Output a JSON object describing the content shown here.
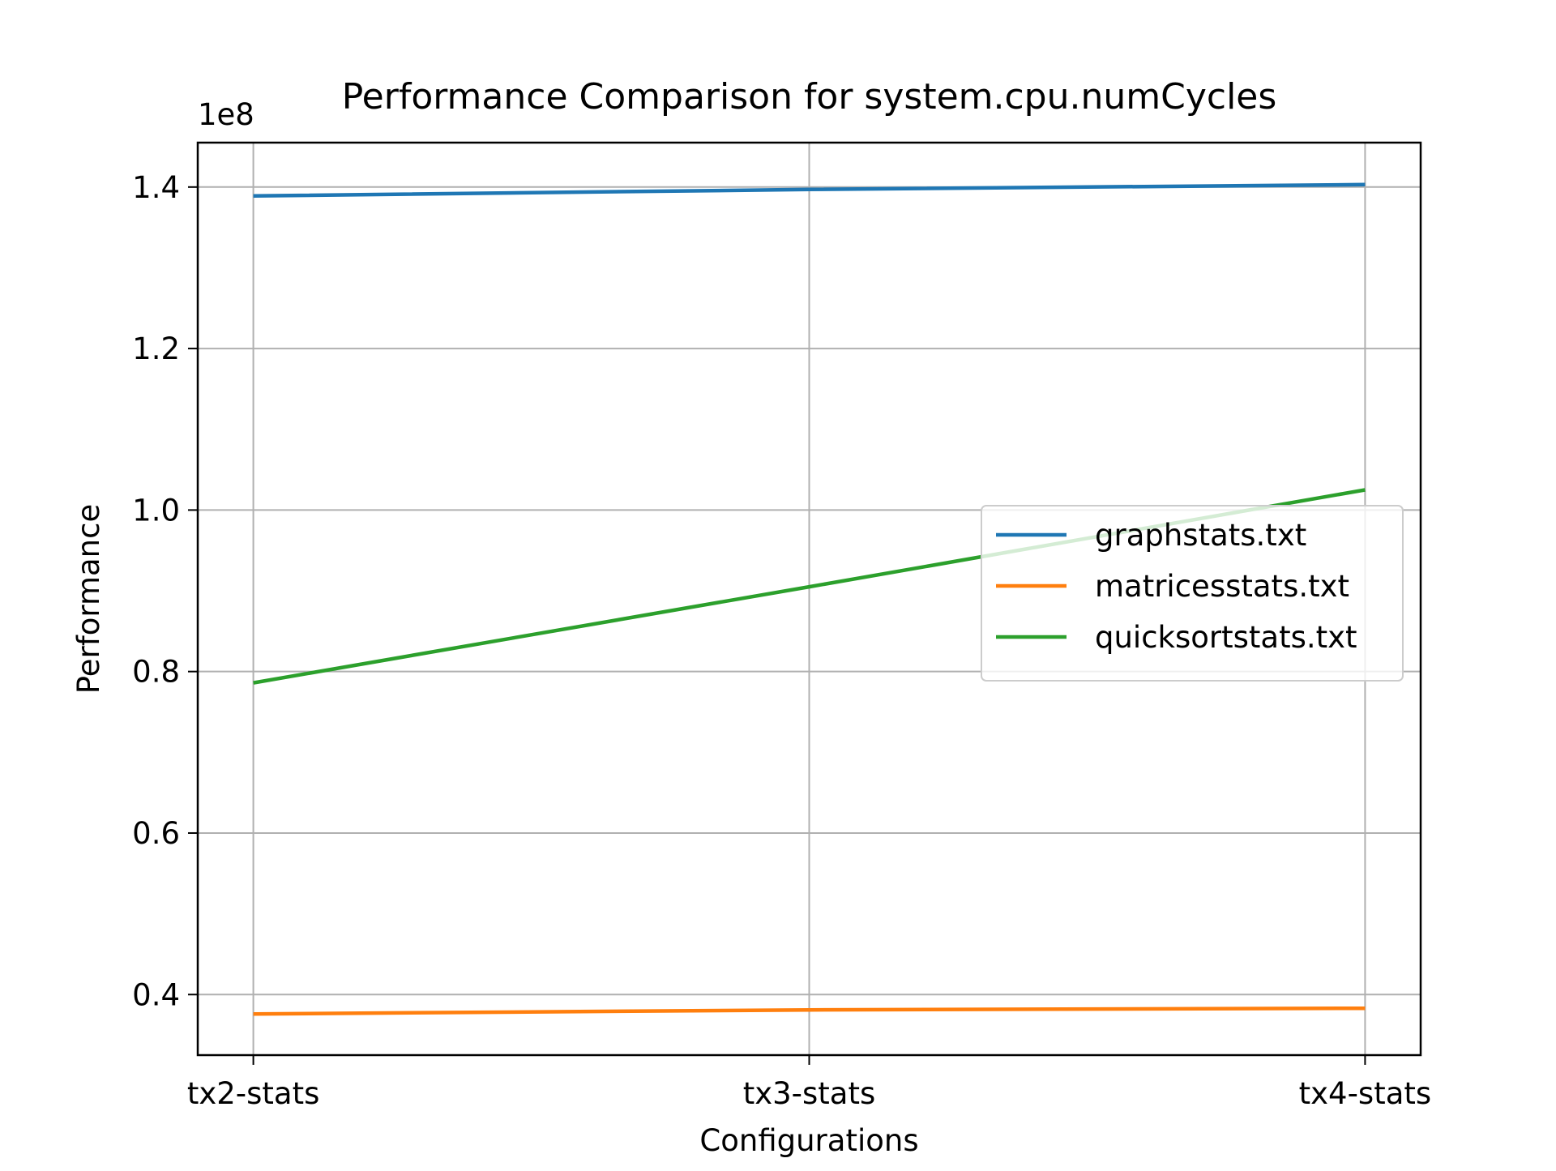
{
  "chart_data": {
    "type": "line",
    "title": "Performance Comparison for system.cpu.numCycles",
    "xlabel": "Configurations",
    "ylabel": "Performance",
    "y_offset_label": "1e8",
    "categories": [
      "tx2-stats",
      "tx3-stats",
      "tx4-stats"
    ],
    "ylim": [
      0.325,
      1.455
    ],
    "y_scale_factor": 100000000,
    "yticks": [
      0.4,
      0.6,
      0.8,
      1.0,
      1.2,
      1.4
    ],
    "ytick_labels": [
      "0.4",
      "0.6",
      "0.8",
      "1.0",
      "1.2",
      "1.4"
    ],
    "grid": true,
    "legend_position": "center-right",
    "series": [
      {
        "name": "graphstats.txt",
        "color": "#1f77b4",
        "values": [
          1.389,
          1.397,
          1.403
        ]
      },
      {
        "name": "matricesstats.txt",
        "color": "#ff7f0e",
        "values": [
          0.376,
          0.381,
          0.383
        ]
      },
      {
        "name": "quicksortstats.txt",
        "color": "#2ca02c",
        "values": [
          0.786,
          0.905,
          1.025
        ]
      }
    ]
  }
}
